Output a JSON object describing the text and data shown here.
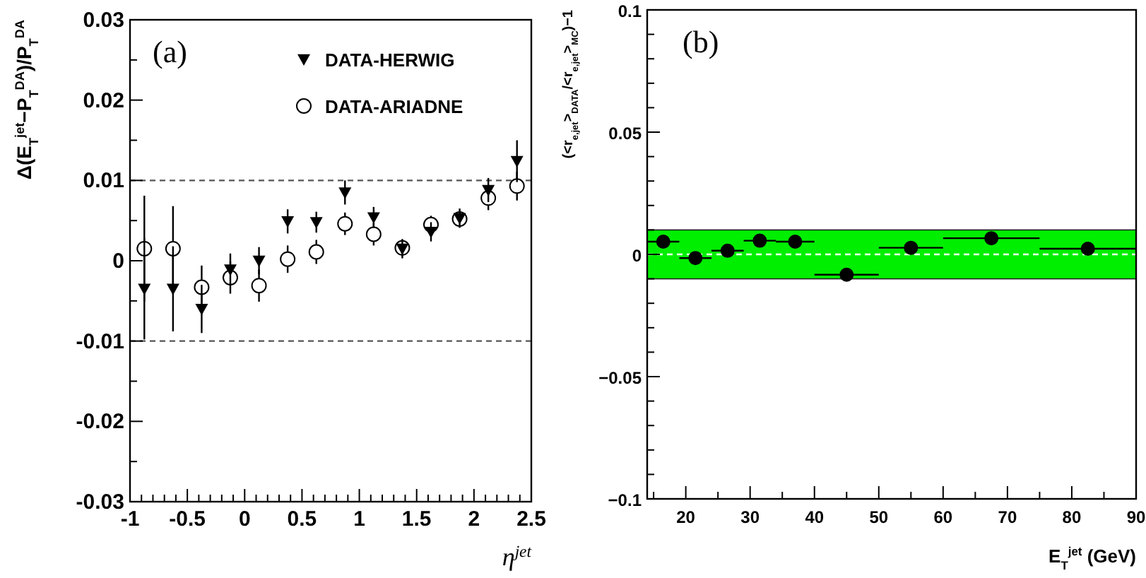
{
  "chart_data": [
    {
      "type": "scatter",
      "xlabel": "η$^{jet}$",
      "ylabel": "Δ(E$_{T}$$^{jet}$−P$_{T}$$^{DA}$)/P$_{T}$$^{DA}$",
      "annotations": [
        "(a)"
      ],
      "legend": "top right",
      "grid": false,
      "x": [
        -0.875,
        -0.625,
        -0.375,
        -0.125,
        0.125,
        0.375,
        0.625,
        0.875,
        1.125,
        1.375,
        1.625,
        1.875,
        2.125,
        2.375
      ],
      "series": [
        {
          "name": "DATA-HERWIG",
          "color": "#000000",
          "marker": "triangle",
          "values": [
            -0.0035,
            -0.0035,
            -0.006,
            -0.0011,
            0.0,
            0.0049,
            0.0048,
            0.0085,
            0.0054,
            0.0015,
            0.0036,
            0.0053,
            0.0088,
            0.0124
          ],
          "errors": [
            0.0063,
            0.0053,
            0.003,
            0.002,
            0.0017,
            0.0015,
            0.0013,
            0.0015,
            0.0013,
            0.0012,
            0.0012,
            0.0012,
            0.0015,
            0.0026
          ]
        },
        {
          "name": "DATA-ARIADNE",
          "color": "#000000",
          "marker": "circle",
          "values": [
            0.0015,
            0.0015,
            -0.0033,
            -0.0021,
            -0.0031,
            0.0002,
            0.0011,
            0.0046,
            0.0033,
            0.0016,
            0.0045,
            0.0052,
            0.0078,
            0.0093
          ],
          "errors": [
            0.0066,
            0.0053,
            0.0027,
            0.002,
            0.002,
            0.0017,
            0.0015,
            0.0014,
            0.0014,
            0.001,
            0.0011,
            0.001,
            0.0015,
            0.0018
          ]
        }
      ],
      "xlim": [
        -1,
        2.5
      ],
      "ylim": [
        -0.03,
        0.03
      ],
      "xticks": [
        -1,
        {
          "value": -0.9,
          "label": null
        },
        {
          "value": -0.8,
          "label": null
        },
        {
          "value": -0.7,
          "label": null
        },
        {
          "value": -0.6,
          "label": null
        },
        -0.5,
        {
          "value": -0.4,
          "label": null
        },
        {
          "value": -0.3,
          "label": null
        },
        {
          "value": -0.2,
          "label": null
        },
        {
          "value": -0.1,
          "label": null
        },
        0,
        {
          "value": 0.1,
          "label": null
        },
        {
          "value": 0.2,
          "label": null
        },
        {
          "value": 0.3,
          "label": null
        },
        {
          "value": 0.4,
          "label": null
        },
        0.5,
        {
          "value": 0.6,
          "label": null
        },
        {
          "value": 0.7,
          "label": null
        },
        {
          "value": 0.8,
          "label": null
        },
        {
          "value": 0.9,
          "label": null
        },
        1,
        {
          "value": 1.1,
          "label": null
        },
        {
          "value": 1.2,
          "label": null
        },
        {
          "value": 1.3,
          "label": null
        },
        {
          "value": 1.4,
          "label": null
        },
        1.5,
        {
          "value": 1.6,
          "label": null
        },
        {
          "value": 1.7,
          "label": null
        },
        {
          "value": 1.8,
          "label": null
        },
        {
          "value": 1.9,
          "label": null
        },
        2,
        {
          "value": 2.1,
          "label": null
        },
        {
          "value": 2.2,
          "label": null
        },
        {
          "value": 2.3,
          "label": null
        },
        {
          "value": 2.4,
          "label": null
        },
        2.5
      ],
      "yticks": [
        -0.03,
        {
          "value": -0.025,
          "label": null
        },
        -0.02,
        {
          "value": -0.015,
          "label": null
        },
        -0.01,
        {
          "value": -0.005,
          "label": null
        },
        0,
        {
          "value": 0.005,
          "label": null
        },
        0.01,
        {
          "value": 0.015,
          "label": null
        },
        0.02,
        {
          "value": 0.025,
          "label": null
        },
        0.03
      ],
      "ref_lines": [
        {
          "axis": "y",
          "value": 0.01,
          "color": "#555555",
          "line_style": "dashed"
        },
        {
          "axis": "y",
          "value": -0.01,
          "color": "#555555",
          "line_style": "dashed"
        }
      ]
    },
    {
      "type": "scatter",
      "xlabel": "E$_{T}$$^{jet}$ (GeV)",
      "ylabel": "(<r$_{e,jet}$>$_{DATA}$/<r$_{e,jet}$>$_{MC}$)−1",
      "annotations": [
        "(b)"
      ],
      "grid": false,
      "x": [
        16.5,
        21.5,
        26.5,
        31.5,
        37,
        45,
        55,
        67.5,
        82.5
      ],
      "series": [
        {
          "color": "#000000",
          "marker": "circle",
          "values": [
            0.0052,
            -0.0015,
            0.0015,
            0.0056,
            0.0052,
            -0.0083,
            0.0027,
            0.0066,
            0.0023
          ],
          "xerrors": [
            2.5,
            2.5,
            2.5,
            2.5,
            3,
            5,
            5,
            7.5,
            7.5
          ]
        }
      ],
      "xlim": [
        14,
        90
      ],
      "ylim": [
        -0.1,
        0.1
      ],
      "xticks": [
        {
          "value": 15,
          "label": null
        },
        20,
        {
          "value": 25,
          "label": null
        },
        30,
        {
          "value": 35,
          "label": null
        },
        40,
        {
          "value": 45,
          "label": null
        },
        50,
        {
          "value": 55,
          "label": null
        },
        60,
        {
          "value": 65,
          "label": null
        },
        70,
        {
          "value": 75,
          "label": null
        },
        80,
        {
          "value": 85,
          "label": null
        },
        90
      ],
      "yticks": [
        {
          "value": -0.1,
          "label": "−0.1"
        },
        {
          "value": -0.09,
          "label": null
        },
        {
          "value": -0.08,
          "label": null
        },
        {
          "value": -0.07,
          "label": null
        },
        {
          "value": -0.06,
          "label": null
        },
        {
          "value": -0.05,
          "label": "−0.05"
        },
        {
          "value": -0.04,
          "label": null
        },
        {
          "value": -0.03,
          "label": null
        },
        {
          "value": -0.02,
          "label": null
        },
        {
          "value": -0.01,
          "label": null
        },
        0,
        {
          "value": 0.01,
          "label": null
        },
        {
          "value": 0.02,
          "label": null
        },
        {
          "value": 0.03,
          "label": null
        },
        {
          "value": 0.04,
          "label": null
        },
        0.05,
        {
          "value": 0.06,
          "label": null
        },
        {
          "value": 0.07,
          "label": null
        },
        {
          "value": 0.08,
          "label": null
        },
        {
          "value": 0.09,
          "label": null
        },
        0.1
      ],
      "bands": [
        {
          "axis": "y",
          "from": -0.01,
          "to": 0.01,
          "color": "#00ee00"
        }
      ],
      "ref_lines": [
        {
          "axis": "y",
          "value": 0,
          "color": "#ffffff",
          "line_style": "dashed"
        }
      ]
    }
  ]
}
